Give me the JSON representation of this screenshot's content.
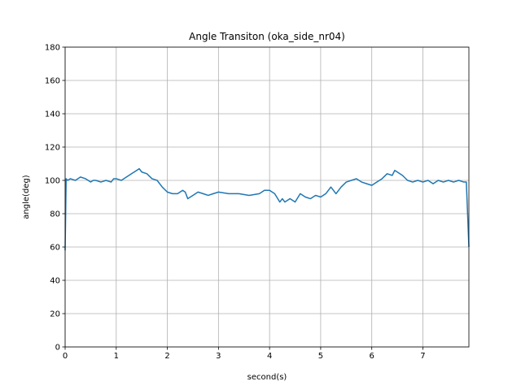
{
  "chart_data": {
    "type": "line",
    "title": "Angle Transiton (oka_side_nr04)",
    "xlabel": "second(s)",
    "ylabel": "angle(deg)",
    "xlim": [
      0,
      7.9
    ],
    "ylim": [
      0,
      180
    ],
    "xticks": [
      0,
      1,
      2,
      3,
      4,
      5,
      6,
      7
    ],
    "yticks": [
      0,
      20,
      40,
      60,
      80,
      100,
      120,
      140,
      160,
      180
    ],
    "grid": true,
    "series": [
      {
        "color": "#1f77b4",
        "x": [
          0,
          0.02,
          0.05,
          0.1,
          0.2,
          0.3,
          0.4,
          0.5,
          0.55,
          0.6,
          0.7,
          0.8,
          0.9,
          0.95,
          1.0,
          1.1,
          1.2,
          1.3,
          1.4,
          1.45,
          1.5,
          1.6,
          1.7,
          1.8,
          1.9,
          2.0,
          2.1,
          2.2,
          2.3,
          2.35,
          2.4,
          2.5,
          2.6,
          2.7,
          2.8,
          2.9,
          3.0,
          3.2,
          3.4,
          3.6,
          3.8,
          3.9,
          4.0,
          4.1,
          4.2,
          4.25,
          4.3,
          4.4,
          4.5,
          4.6,
          4.7,
          4.8,
          4.9,
          5.0,
          5.1,
          5.2,
          5.3,
          5.35,
          5.4,
          5.5,
          5.6,
          5.7,
          5.8,
          5.9,
          6.0,
          6.1,
          6.2,
          6.3,
          6.4,
          6.45,
          6.5,
          6.6,
          6.7,
          6.8,
          6.9,
          7.0,
          7.1,
          7.2,
          7.3,
          7.4,
          7.5,
          7.6,
          7.7,
          7.8,
          7.85,
          7.9
        ],
        "y": [
          58,
          101,
          100,
          101,
          100,
          102,
          101,
          99,
          100,
          100,
          99,
          100,
          99,
          101,
          101,
          100,
          102,
          104,
          106,
          107,
          105,
          104,
          101,
          100,
          96,
          93,
          92,
          92,
          94,
          93,
          89,
          91,
          93,
          92,
          91,
          92,
          93,
          92,
          92,
          91,
          92,
          94,
          94,
          92,
          87,
          89,
          87,
          89,
          87,
          92,
          90,
          89,
          91,
          90,
          92,
          96,
          92,
          94,
          96,
          99,
          100,
          101,
          99,
          98,
          97,
          99,
          101,
          104,
          103,
          106,
          105,
          103,
          100,
          99,
          100,
          99,
          100,
          98,
          100,
          99,
          100,
          99,
          100,
          99,
          99,
          60
        ]
      }
    ]
  }
}
